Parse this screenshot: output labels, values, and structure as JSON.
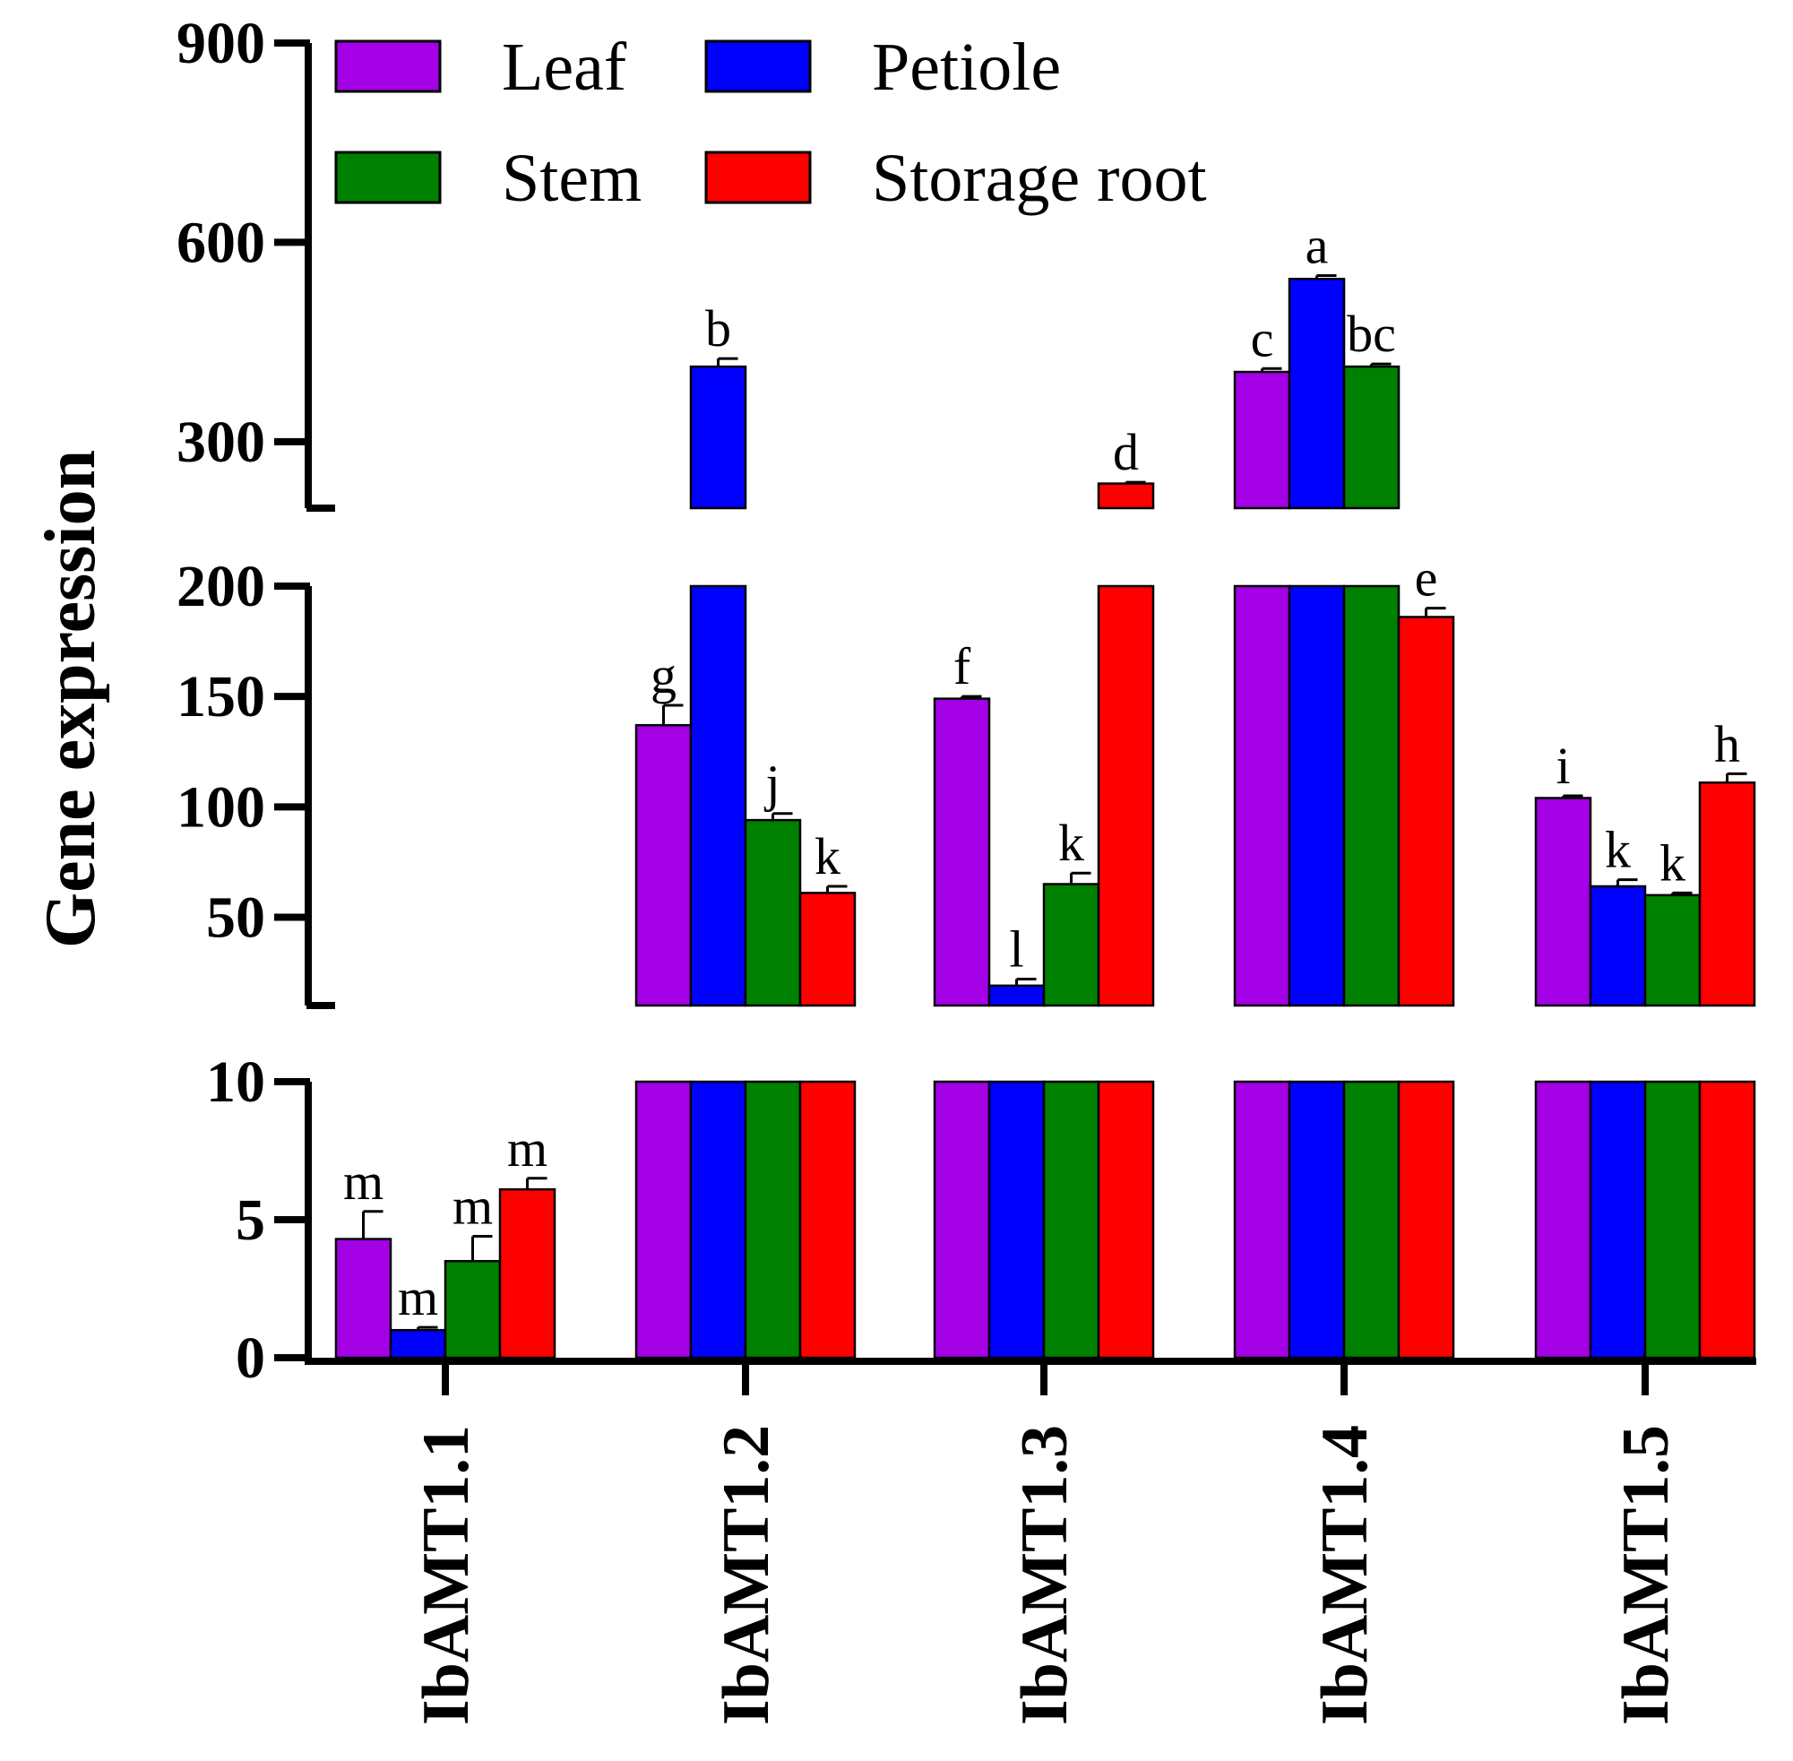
{
  "chart_data": {
    "type": "bar",
    "title": "",
    "xlabel": "",
    "ylabel": "Gene expression",
    "categories": [
      "IbAMT1.1",
      "IbAMT1.2",
      "IbAMT1.3",
      "IbAMT1.4",
      "IbAMT1.5"
    ],
    "series": [
      {
        "name": "Leaf",
        "color": "#a400e6",
        "values": [
          4.3,
          137,
          149,
          405,
          104
        ],
        "errors": [
          1.0,
          9,
          1,
          5,
          1
        ],
        "labels": [
          "m",
          "g",
          "f",
          "c",
          "i"
        ]
      },
      {
        "name": "Petiole",
        "color": "#0000ff",
        "values": [
          1.0,
          413,
          19,
          545,
          64
        ],
        "errors": [
          0.1,
          12,
          3,
          5,
          3
        ],
        "labels": [
          "m",
          "b",
          "l",
          "a",
          "k"
        ]
      },
      {
        "name": "Stem",
        "color": "#008000",
        "values": [
          3.5,
          94,
          65,
          413,
          60
        ],
        "errors": [
          0.9,
          3,
          5,
          4,
          1
        ],
        "labels": [
          "m",
          "j",
          "k",
          "bc",
          "k"
        ]
      },
      {
        "name": "Storage root",
        "color": "#ff0000",
        "values": [
          6.1,
          61,
          237,
          186,
          111
        ],
        "errors": [
          0.4,
          3,
          2,
          4,
          4
        ],
        "labels": [
          "m",
          "k",
          "d",
          "e",
          "h"
        ]
      }
    ],
    "y_axis_segments": [
      {
        "range": [
          0,
          10
        ],
        "ticks": [
          "0",
          "5",
          "10"
        ]
      },
      {
        "range": [
          10,
          200
        ],
        "ticks": [
          "50",
          "100",
          "150",
          "200"
        ]
      },
      {
        "range": [
          200,
          900
        ],
        "ticks": [
          "300",
          "600",
          "900"
        ]
      }
    ],
    "legend": {
      "position": "top-left",
      "columns": 2
    },
    "grid": false
  }
}
